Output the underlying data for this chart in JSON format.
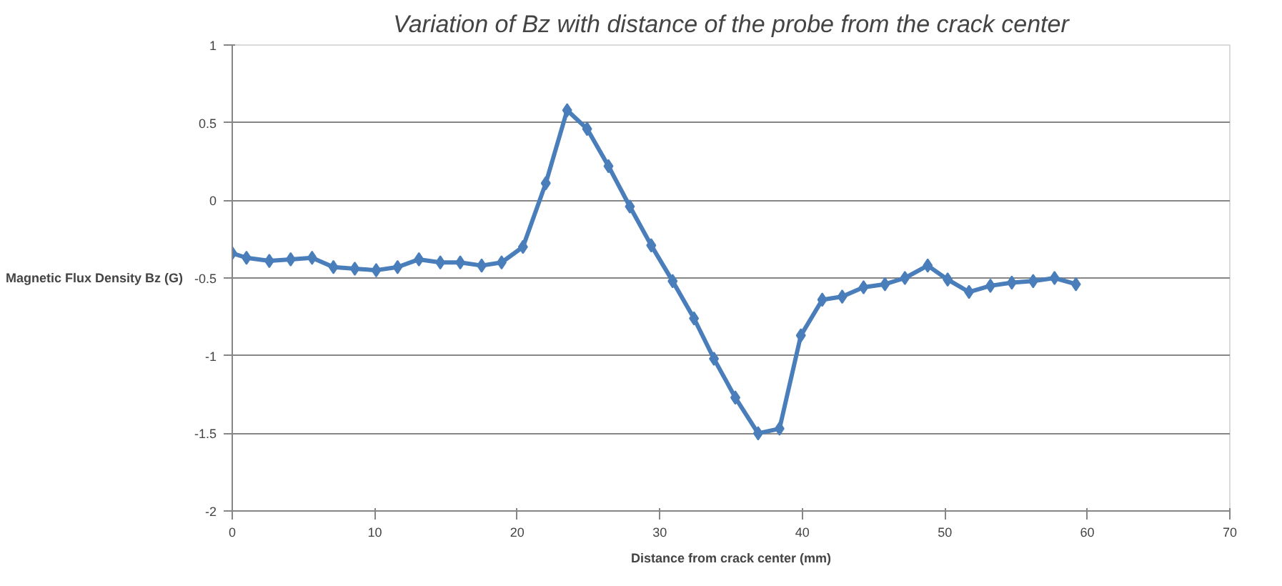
{
  "chart_data": {
    "type": "line",
    "title": "Variation of Bz with distance of the probe from the crack center",
    "xlabel": "Distance from crack center (mm)",
    "ylabel": "Magnetic Flux Density Bz (G)",
    "xlim": [
      0,
      70
    ],
    "xticks": [
      0,
      10,
      20,
      30,
      40,
      50,
      60,
      70
    ],
    "ylim": [
      -2,
      1
    ],
    "yticks": [
      -2,
      -1.5,
      -1,
      -0.5,
      0,
      0.5,
      1
    ],
    "grid": "y",
    "marker": "diamond",
    "line_style": "solid",
    "series": [
      {
        "color": "#4a7ebb",
        "x": [
          0,
          1,
          2.6,
          4.1,
          5.6,
          7.1,
          8.6,
          10.1,
          11.6,
          13.1,
          14.6,
          16,
          17.5,
          18.9,
          20.4,
          22,
          23.5,
          24.9,
          26.4,
          27.9,
          29.4,
          30.9,
          32.4,
          33.8,
          35.3,
          36.9,
          38.4,
          39.9,
          41.4,
          42.8,
          44.3,
          45.8,
          47.2,
          48.8,
          50.2,
          51.7,
          53.2,
          54.7,
          56.2,
          57.7,
          59.2
        ],
        "values": [
          -0.34,
          -0.37,
          -0.39,
          -0.38,
          -0.37,
          -0.43,
          -0.44,
          -0.45,
          -0.43,
          -0.38,
          -0.4,
          -0.4,
          -0.42,
          -0.4,
          -0.3,
          0.11,
          0.58,
          0.46,
          0.22,
          -0.04,
          -0.29,
          -0.52,
          -0.76,
          -1.02,
          -1.27,
          -1.5,
          -1.47,
          -0.87,
          -0.64,
          -0.62,
          -0.56,
          -0.54,
          -0.5,
          -0.42,
          -0.51,
          -0.59,
          -0.55,
          -0.53,
          -0.52,
          -0.5,
          -0.54
        ]
      }
    ]
  }
}
